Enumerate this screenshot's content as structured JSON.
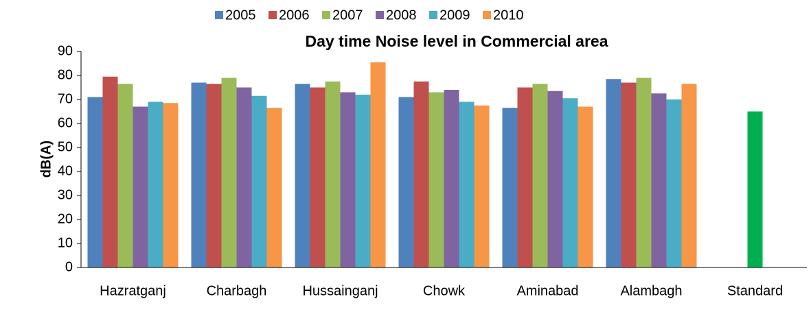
{
  "chart_data": {
    "type": "bar",
    "title": "Day time Noise level in Commercial area",
    "y_label": "dB(A)",
    "categories": [
      "Hazratganj",
      "Charbagh",
      "Hussainganj",
      "Chowk",
      "Aminabad",
      "Alambagh",
      "Standard"
    ],
    "series": [
      {
        "name": "2005",
        "color": "#4f81bd",
        "values": [
          71,
          77,
          76.5,
          71,
          66.5,
          78.5,
          null
        ]
      },
      {
        "name": "2006",
        "color": "#c0504d",
        "values": [
          79.5,
          76.5,
          75,
          77.5,
          75,
          77,
          null
        ]
      },
      {
        "name": "2007",
        "color": "#9bbb59",
        "values": [
          76.5,
          79,
          77.5,
          73,
          76.5,
          79,
          null
        ]
      },
      {
        "name": "2008",
        "color": "#8064a2",
        "values": [
          67,
          75,
          73,
          74,
          73.5,
          72.5,
          null
        ]
      },
      {
        "name": "2009",
        "color": "#4bacc6",
        "values": [
          69,
          71.5,
          72,
          69,
          70.5,
          70,
          null
        ]
      },
      {
        "name": "2010",
        "color": "#f79646",
        "values": [
          68.5,
          66.5,
          85.5,
          67.5,
          67,
          76.5,
          null
        ]
      }
    ],
    "standard": {
      "category": 6,
      "value": 65,
      "color": "#00b050"
    },
    "ylim": [
      0,
      90
    ],
    "yticks": [
      0,
      10,
      20,
      30,
      40,
      50,
      60,
      70,
      80,
      90
    ],
    "legend": "top"
  }
}
